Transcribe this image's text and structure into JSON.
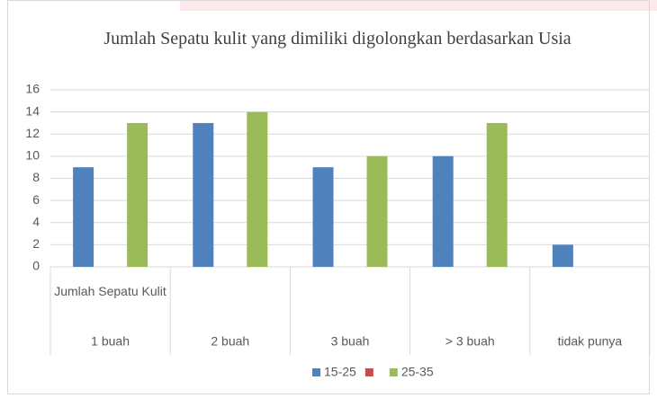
{
  "chart_data": {
    "type": "bar",
    "title": "Jumlah Sepatu kulit yang dimiliki digolongkan berdasarkan Usia",
    "category_group": "Jumlah Sepatu Kulit",
    "categories": [
      "1 buah",
      "2 buah",
      "3 buah",
      "> 3 buah",
      "tidak punya"
    ],
    "series": [
      {
        "name": "15-25",
        "color": "#4f81bd",
        "values": [
          9,
          13,
          9,
          10,
          2
        ]
      },
      {
        "name": null,
        "color": "#c0504d",
        "values": [
          null,
          null,
          null,
          null,
          null
        ]
      },
      {
        "name": "25-35",
        "color": "#9bbb59",
        "values": [
          13,
          14,
          10,
          13,
          null
        ]
      }
    ],
    "ylim": [
      0,
      16
    ],
    "yticks": [
      0,
      2,
      4,
      6,
      8,
      10,
      12,
      14,
      16
    ],
    "grid": true,
    "legend": "bottom"
  }
}
